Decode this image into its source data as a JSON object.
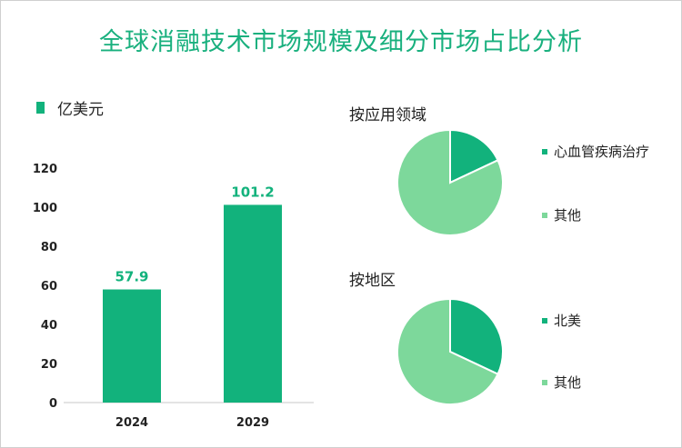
{
  "title": "全球消融技术市场规模及细分市场占比分析",
  "colors": {
    "title": "#19b07e",
    "bar": "#12b27c",
    "pie_main": "#12b27c",
    "pie_other": "#7dd89b"
  },
  "chart_data": [
    {
      "type": "bar",
      "legend": "亿美元",
      "categories": [
        "2024",
        "2029"
      ],
      "values": [
        57.9,
        101.2
      ],
      "data_labels": [
        "57.9",
        "101.2"
      ],
      "ylim": [
        0,
        120
      ],
      "yticks": [
        "0",
        "20",
        "40",
        "60",
        "80",
        "100",
        "120"
      ]
    },
    {
      "type": "pie",
      "title": "按应用领域",
      "labels": [
        "心血管疾病治疗",
        "其他"
      ],
      "values": [
        18,
        82
      ]
    },
    {
      "type": "pie",
      "title": "按地区",
      "labels": [
        "北美",
        "其他"
      ],
      "values": [
        32,
        68
      ]
    }
  ]
}
